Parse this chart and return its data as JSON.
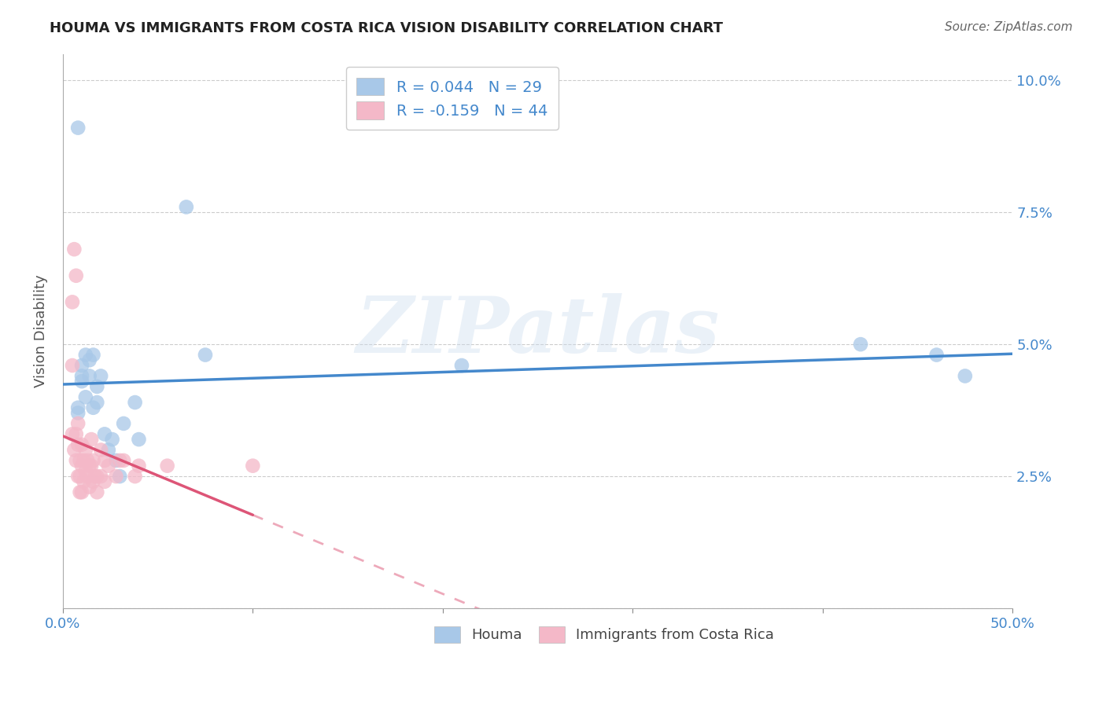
{
  "title": "HOUMA VS IMMIGRANTS FROM COSTA RICA VISION DISABILITY CORRELATION CHART",
  "source": "Source: ZipAtlas.com",
  "ylabel": "Vision Disability",
  "xlabel": "",
  "xlim": [
    0.0,
    0.5
  ],
  "ylim": [
    0.0,
    0.105
  ],
  "xticks": [
    0.0,
    0.1,
    0.2,
    0.3,
    0.4,
    0.5
  ],
  "yticks": [
    0.0,
    0.025,
    0.05,
    0.075,
    0.1
  ],
  "ytick_labels_right": [
    "",
    "2.5%",
    "5.0%",
    "7.5%",
    "10.0%"
  ],
  "xtick_labels": [
    "0.0%",
    "",
    "",
    "",
    "",
    "50.0%"
  ],
  "houma_R": 0.044,
  "houma_N": 29,
  "cr_R": -0.159,
  "cr_N": 44,
  "houma_color": "#a8c8e8",
  "cr_color": "#f4b8c8",
  "houma_line_color": "#4488cc",
  "cr_line_color": "#dd5577",
  "legend_text_color": "#4488cc",
  "legend_label_houma": "Houma",
  "legend_label_cr": "Immigrants from Costa Rica",
  "watermark_text": "ZIPatlas",
  "houma_x": [
    0.008,
    0.008,
    0.008,
    0.01,
    0.01,
    0.01,
    0.012,
    0.012,
    0.014,
    0.014,
    0.016,
    0.016,
    0.018,
    0.018,
    0.02,
    0.022,
    0.024,
    0.026,
    0.028,
    0.03,
    0.032,
    0.038,
    0.04,
    0.065,
    0.075,
    0.21,
    0.42,
    0.46,
    0.475
  ],
  "houma_y": [
    0.091,
    0.038,
    0.037,
    0.046,
    0.044,
    0.043,
    0.048,
    0.04,
    0.047,
    0.044,
    0.048,
    0.038,
    0.042,
    0.039,
    0.044,
    0.033,
    0.03,
    0.032,
    0.028,
    0.025,
    0.035,
    0.039,
    0.032,
    0.076,
    0.048,
    0.046,
    0.05,
    0.048,
    0.044
  ],
  "cr_x": [
    0.005,
    0.005,
    0.006,
    0.007,
    0.007,
    0.008,
    0.008,
    0.008,
    0.009,
    0.009,
    0.009,
    0.01,
    0.01,
    0.01,
    0.011,
    0.011,
    0.012,
    0.012,
    0.013,
    0.013,
    0.014,
    0.014,
    0.015,
    0.015,
    0.016,
    0.016,
    0.017,
    0.018,
    0.018,
    0.02,
    0.02,
    0.022,
    0.022,
    0.024,
    0.028,
    0.03,
    0.032,
    0.038,
    0.04,
    0.055,
    0.1,
    0.005,
    0.006,
    0.007
  ],
  "cr_y": [
    0.046,
    0.033,
    0.03,
    0.033,
    0.028,
    0.035,
    0.031,
    0.025,
    0.028,
    0.025,
    0.022,
    0.031,
    0.027,
    0.022,
    0.028,
    0.024,
    0.03,
    0.026,
    0.028,
    0.025,
    0.027,
    0.023,
    0.032,
    0.027,
    0.028,
    0.024,
    0.025,
    0.025,
    0.022,
    0.03,
    0.025,
    0.028,
    0.024,
    0.027,
    0.025,
    0.028,
    0.028,
    0.025,
    0.027,
    0.027,
    0.027,
    0.058,
    0.068,
    0.063
  ],
  "background_color": "#ffffff",
  "grid_color": "#cccccc",
  "cr_line_dash_start": 0.1,
  "cr_line_dash_end": 0.5
}
